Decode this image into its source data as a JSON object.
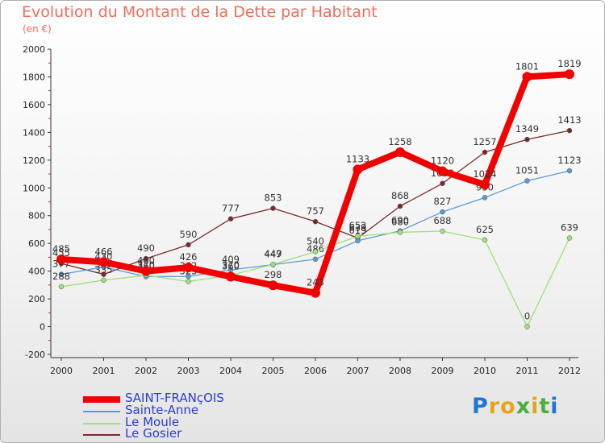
{
  "chart_data": {
    "type": "line",
    "title": "Evolution du Montant de la Dette par Habitant",
    "unit_label": "(en €)",
    "xlabel": "",
    "ylabel": "",
    "x": [
      "2000",
      "2001",
      "2002",
      "2003",
      "2004",
      "2005",
      "2006",
      "2007",
      "2008",
      "2009",
      "2010",
      "2011",
      "2012"
    ],
    "ylim": [
      -200,
      2000
    ],
    "yticks": [
      -200,
      0,
      200,
      400,
      600,
      800,
      1000,
      1200,
      1400,
      1600,
      1800,
      2000
    ],
    "grid": false,
    "legend_position": "bottom-left",
    "series": [
      {
        "name": "Le Gosier",
        "color": "#7b2a2a",
        "values": [
          455,
          377,
          490,
          590,
          777,
          853,
          757,
          639,
          868,
          1032,
          1257,
          1349,
          1413
        ],
        "labels": [
          "455",
          "377",
          "490",
          "590",
          "777",
          "853",
          "757",
          "639",
          "868",
          "1032",
          "1257",
          "1349",
          "1413"
        ]
      },
      {
        "name": "Sainte-Anne",
        "color": "#5b9bd5",
        "values": [
          377,
          430,
          360,
          362,
          409,
          447,
          486,
          619,
          690,
          827,
          930,
          1051,
          1123
        ],
        "labels": [
          "377",
          "430",
          "360",
          "362",
          "409",
          "447",
          "486",
          "619",
          "690",
          "827",
          "930",
          "1051",
          "1123"
        ]
      },
      {
        "name": "Le Moule",
        "color": "#9ee07a",
        "values": [
          288,
          335,
          370,
          325,
          370,
          449,
          540,
          652,
          680,
          688,
          625,
          0,
          639
        ],
        "labels": [
          "288",
          "335",
          "370",
          "325",
          "370",
          "449",
          "540",
          "652",
          "680",
          "688",
          "625",
          "0",
          "639"
        ]
      },
      {
        "name": "SAINT-FRANçOIS",
        "color": "#f00000",
        "values": [
          485,
          466,
          400,
          426,
          360,
          298,
          243,
          1133,
          1258,
          1120,
          1024,
          1801,
          1819
        ],
        "labels": [
          "485",
          "466",
          "400",
          "426",
          "360",
          "298",
          "243",
          "1133",
          "1258",
          "1120",
          "1024",
          "1801",
          "1819"
        ]
      }
    ],
    "legend": [
      "SAINT-FRANçOIS",
      "Sainte-Anne",
      "Le Moule",
      "Le Gosier"
    ]
  },
  "logo": {
    "text": "Proxiti",
    "letters": [
      "P",
      "r",
      "o",
      "x",
      "i",
      "t",
      "i"
    ],
    "colors": [
      "#1f77d0",
      "#e8a31c",
      "#e8a31c",
      "#4cae3c",
      "#e8a31c",
      "#4cae3c",
      "#1f77d0"
    ]
  },
  "colors": {
    "title": "#f26c5b",
    "legend_text": "#2b3bd6",
    "axis": "#333333",
    "tick_red": "#d02020"
  }
}
